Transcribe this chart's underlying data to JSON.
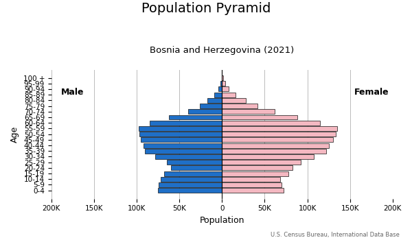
{
  "title": "Population Pyramid",
  "subtitle": "Bosnia and Herzegovina (2021)",
  "footnote": "U.S. Census Bureau, International Data Base",
  "xlabel": "Population",
  "ylabel": "Age",
  "male_label": "Male",
  "female_label": "Female",
  "age_groups": [
    "0-4",
    "5-9",
    "10-14",
    "15-19",
    "20-24",
    "25-29",
    "30-34",
    "35-39",
    "40-44",
    "45-49",
    "50-54",
    "55-59",
    "60-64",
    "65-69",
    "70-74",
    "75-79",
    "80-84",
    "85-89",
    "90-94",
    "95-99",
    "100 +"
  ],
  "male_values": [
    75000,
    74000,
    72000,
    68000,
    60000,
    65000,
    78000,
    90000,
    92000,
    95000,
    97000,
    98000,
    85000,
    62000,
    40000,
    26000,
    17000,
    9000,
    4000,
    1500,
    500
  ],
  "female_values": [
    72000,
    70000,
    68000,
    78000,
    83000,
    92000,
    108000,
    122000,
    125000,
    130000,
    133000,
    135000,
    115000,
    88000,
    62000,
    42000,
    28000,
    16000,
    8000,
    3500,
    1200
  ],
  "male_color": "#1f6fc7",
  "female_color": "#f4b8c1",
  "bar_edge_color": "#111111",
  "bar_edge_width": 0.5,
  "xlim": 200000,
  "background_color": "#ffffff",
  "grid_color": "#bbbbbb",
  "title_fontsize": 14,
  "subtitle_fontsize": 9.5,
  "label_fontsize": 9,
  "tick_fontsize": 7.5,
  "ylabel_fontsize": 9
}
